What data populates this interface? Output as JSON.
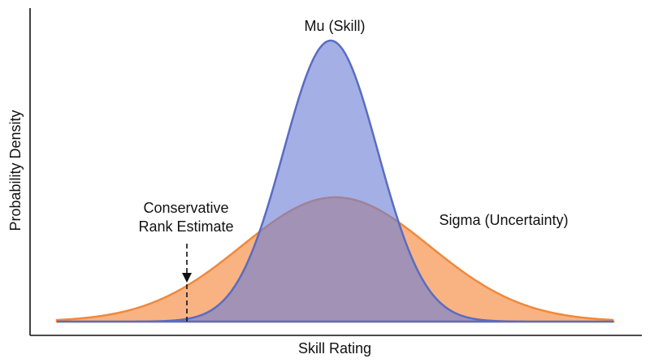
{
  "axes": {
    "x_label": "Skill Rating",
    "y_label": "Probability Density"
  },
  "labels": {
    "mu": "Mu (Skill)",
    "sigma": "Sigma (Uncertainty)",
    "conservative": [
      "Conservative",
      "Rank Estimate"
    ]
  }
}
